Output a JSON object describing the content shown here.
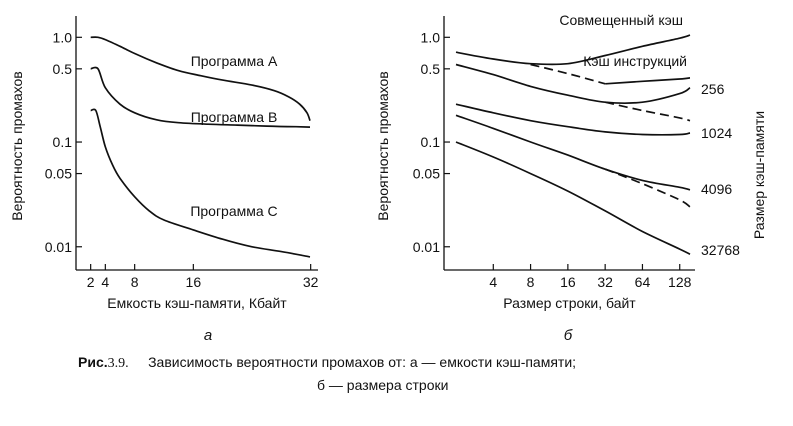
{
  "caption": {
    "fig_label": "Рис.",
    "fig_number": "3.9.",
    "line1": "Зависимость вероятности промахов от: а — емкости кэш-памяти;",
    "line2": "б — размера строки"
  },
  "chart_data": [
    {
      "type": "line",
      "panel_label": "а",
      "xlabel": "Емкость кэш-памяти, Кбайт",
      "ylabel": "Вероятность промахов",
      "y_scale": "log",
      "ylim": [
        0.006,
        1.4
      ],
      "xlim": [
        0,
        33
      ],
      "x_ticks": [
        2,
        4,
        8,
        16,
        32
      ],
      "x_tick_labels": [
        "2",
        "4",
        "8",
        "16",
        "32"
      ],
      "y_ticks": [
        1.0,
        0.5,
        0.1,
        0.05,
        0.01
      ],
      "y_tick_labels": [
        "1.0",
        "0.5",
        "0.1",
        "0.05",
        "0.01"
      ],
      "series": [
        {
          "name": "Программа А",
          "x": [
            2,
            3,
            4,
            6,
            8,
            11,
            14,
            17,
            20,
            24,
            27,
            29,
            30.5,
            31.5,
            32
          ],
          "y": [
            1.0,
            1.0,
            0.95,
            0.82,
            0.7,
            0.57,
            0.48,
            0.43,
            0.39,
            0.35,
            0.31,
            0.27,
            0.23,
            0.19,
            0.16
          ]
        },
        {
          "name": "Программа В",
          "x": [
            2,
            3,
            4,
            6,
            8,
            11,
            14,
            18,
            22,
            26,
            30,
            32
          ],
          "y": [
            0.5,
            0.5,
            0.33,
            0.23,
            0.19,
            0.163,
            0.153,
            0.148,
            0.145,
            0.142,
            0.14,
            0.139
          ]
        },
        {
          "name": "Программа С",
          "x": [
            2,
            2.7,
            3.3,
            4,
            5,
            6,
            8,
            10,
            12,
            16,
            20,
            24,
            28,
            32
          ],
          "y": [
            0.2,
            0.2,
            0.14,
            0.09,
            0.06,
            0.045,
            0.03,
            0.022,
            0.018,
            0.0145,
            0.0118,
            0.01,
            0.009,
            0.008
          ]
        }
      ]
    },
    {
      "type": "line",
      "panel_label": "б",
      "xlabel": "Размер строки, байт",
      "ylabel": "Вероятность промахов",
      "legend_title": "Размер кэш-памяти",
      "x_scale": "log2",
      "y_scale": "log",
      "ylim": [
        0.006,
        1.4
      ],
      "xlim": [
        1.6,
        170
      ],
      "x_ticks": [
        4,
        8,
        16,
        32,
        64,
        128
      ],
      "x_tick_labels": [
        "4",
        "8",
        "16",
        "32",
        "64",
        "128"
      ],
      "y_ticks": [
        1.0,
        0.5,
        0.1,
        0.05,
        0.01
      ],
      "y_tick_labels": [
        "1.0",
        "0.5",
        "0.1",
        "0.05",
        "0.01"
      ],
      "series": [
        {
          "name": "Совмещенный кэш",
          "style": "solid",
          "x": [
            2,
            4,
            8,
            16,
            32,
            64,
            128,
            160
          ],
          "y": [
            0.72,
            0.62,
            0.56,
            0.56,
            0.67,
            0.82,
            0.98,
            1.05
          ]
        },
        {
          "name": "Кэш инструкций",
          "style": "dashed",
          "x": [
            8,
            16,
            32
          ],
          "y": [
            0.55,
            0.45,
            0.36
          ]
        },
        {
          "name": "Кэш инструкций",
          "style": "solid",
          "x": [
            32,
            64,
            128,
            160
          ],
          "y": [
            0.36,
            0.38,
            0.4,
            0.41
          ]
        },
        {
          "name": "256",
          "style": "solid",
          "x": [
            2,
            4,
            8,
            16,
            32,
            64,
            128,
            160
          ],
          "y": [
            0.55,
            0.44,
            0.34,
            0.28,
            0.24,
            0.24,
            0.29,
            0.33
          ]
        },
        {
          "name": "256",
          "style": "dashed",
          "x": [
            32,
            64,
            128,
            160
          ],
          "y": [
            0.24,
            0.2,
            0.17,
            0.16
          ]
        },
        {
          "name": "1024",
          "style": "solid",
          "x": [
            2,
            4,
            8,
            16,
            32,
            64,
            128,
            160
          ],
          "y": [
            0.23,
            0.19,
            0.16,
            0.14,
            0.125,
            0.118,
            0.118,
            0.122
          ]
        },
        {
          "name": "4096",
          "style": "solid",
          "x": [
            2,
            4,
            8,
            16,
            32,
            64,
            128,
            160
          ],
          "y": [
            0.18,
            0.135,
            0.1,
            0.075,
            0.055,
            0.043,
            0.037,
            0.035
          ]
        },
        {
          "name": "4096",
          "style": "dashed",
          "x": [
            32,
            64,
            128,
            160
          ],
          "y": [
            0.055,
            0.04,
            0.028,
            0.024
          ]
        },
        {
          "name": "32768",
          "style": "solid",
          "x": [
            2,
            4,
            8,
            16,
            32,
            64,
            128,
            160
          ],
          "y": [
            0.1,
            0.072,
            0.05,
            0.034,
            0.022,
            0.014,
            0.0095,
            0.0085
          ]
        }
      ]
    }
  ]
}
